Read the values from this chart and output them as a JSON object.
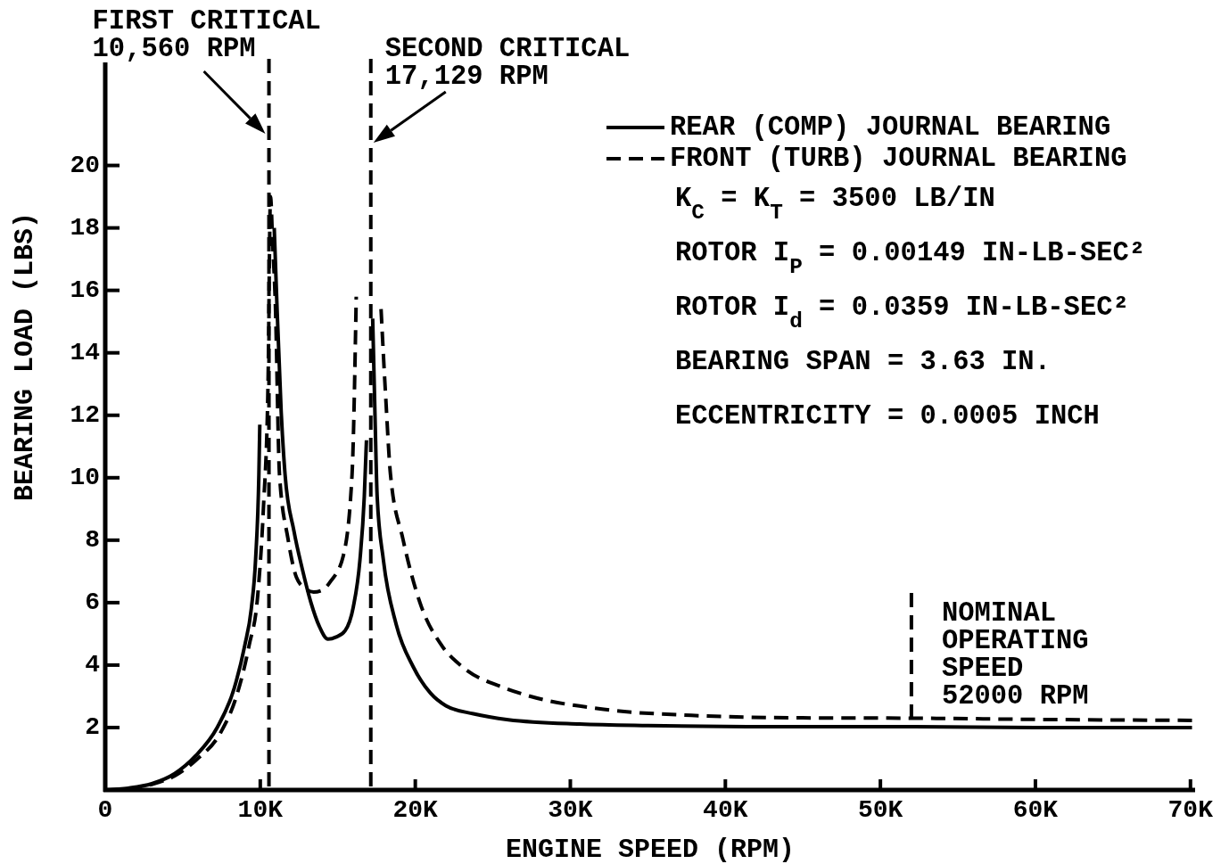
{
  "chart_data": {
    "type": "line",
    "xlabel": "ENGINE SPEED (RPM)",
    "ylabel": "BEARING LOAD (LBS)",
    "xlim": [
      0,
      70300
    ],
    "ylim": [
      0,
      23.3
    ],
    "xticks": [
      0,
      {
        "value": 10000,
        "label": "10K"
      },
      {
        "value": 20000,
        "label": "20K"
      },
      {
        "value": 30000,
        "label": "30K"
      },
      {
        "value": 40000,
        "label": "40K"
      },
      {
        "value": 50000,
        "label": "50K"
      },
      {
        "value": 60000,
        "label": "60K"
      },
      {
        "value": 70000,
        "label": "70K"
      }
    ],
    "yticks": [
      2,
      4,
      6,
      8,
      10,
      12,
      14,
      16,
      18,
      20
    ],
    "series": [
      {
        "name": "REAR (COMP) JOURNAL BEARING",
        "color": "#000000",
        "line_style": "solid",
        "x": [
          0,
          1500,
          3000,
          4470,
          5840,
          7220,
          8320,
          9000,
          9420,
          9700,
          9910,
          9970,
          10400,
          10900,
          11070,
          11350,
          11600,
          12170,
          12700,
          13270,
          13800,
          14370,
          14900,
          15470,
          16000,
          16430,
          16710,
          16850,
          17000,
          17250,
          17400,
          17540,
          17940,
          18770,
          19870,
          20980,
          21970,
          23750,
          26000,
          30600,
          35000,
          41400,
          52200,
          60000,
          70100
        ],
        "values": [
          0,
          0.06,
          0.2,
          0.52,
          1.1,
          2.0,
          3.26,
          4.63,
          5.8,
          7.4,
          10.1,
          11.7,
          null,
          18.0,
          15.6,
          12.1,
          10.1,
          8.3,
          7.1,
          6.0,
          5.25,
          4.83,
          4.9,
          5.1,
          5.86,
          7.37,
          9.4,
          11.2,
          null,
          15.1,
          12.0,
          9.4,
          7.37,
          5.3,
          3.94,
          3.1,
          2.7,
          2.44,
          2.25,
          2.11,
          2.06,
          2.03,
          2.03,
          2.0,
          2.0
        ]
      },
      {
        "name": "FRONT (TURB) JOURNAL BEARING",
        "color": "#000000",
        "line_style": "dashed",
        "x": [
          0,
          1500,
          3000,
          4470,
          5840,
          7490,
          8450,
          9280,
          9830,
          10200,
          10500,
          10660,
          10800,
          10970,
          11240,
          11790,
          12340,
          12900,
          13440,
          14000,
          14550,
          15350,
          15920,
          16190,
          17000,
          17790,
          18100,
          18400,
          19200,
          20300,
          21700,
          23050,
          25800,
          27000,
          32400,
          37800,
          45000,
          52200,
          60000,
          70100
        ],
        "values": [
          0,
          0.04,
          0.18,
          0.45,
          0.95,
          1.88,
          2.98,
          4.63,
          6.2,
          9.0,
          13.0,
          19.0,
          17.5,
          15.6,
          10.1,
          8.04,
          6.8,
          6.45,
          6.34,
          6.4,
          6.69,
          7.49,
          10.1,
          15.8,
          null,
          15.4,
          12.5,
          10.1,
          8.04,
          6.0,
          4.63,
          3.94,
          3.26,
          3.06,
          2.57,
          2.39,
          2.31,
          2.3,
          2.26,
          2.23
        ]
      }
    ],
    "ref_lines": [
      {
        "axis": "x",
        "value": 10560,
        "label": "FIRST CRITICAL\n10,560 RPM",
        "color": "#000000",
        "line_style": "dashed"
      },
      {
        "axis": "x",
        "value": 17129,
        "label": "SECOND CRITICAL\n17,129 RPM",
        "color": "#000000",
        "line_style": "dashed"
      },
      {
        "axis": "x",
        "value": 52000,
        "label": "NOMINAL\nOPERATING\nSPEED\n52000 RPM",
        "color": "#000000",
        "line_style": "dashed"
      }
    ],
    "annotations": [
      "K$_{C}$ = K$_{T}$ = 3500 LB/IN",
      "ROTOR I$_{P}$ = 0.00149 IN-LB-SEC²",
      "ROTOR I$_{d}$ = 0.0359 IN-LB-SEC²",
      "BEARING SPAN = 3.63 IN.",
      "ECCENTRICITY = 0.0005 INCH"
    ],
    "legend": "top right"
  }
}
